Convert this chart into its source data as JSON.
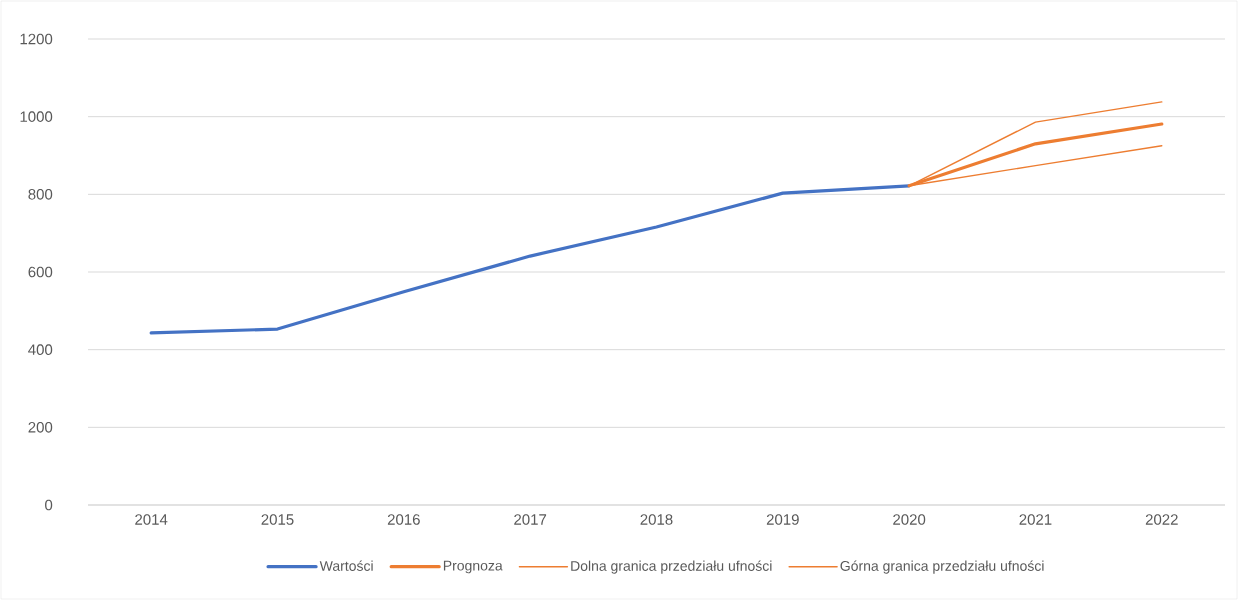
{
  "chart_data": {
    "type": "line",
    "categories": [
      "2014",
      "2015",
      "2016",
      "2017",
      "2018",
      "2019",
      "2020",
      "2021",
      "2022"
    ],
    "series": [
      {
        "name": "Wartości",
        "color": "#4472c4",
        "values": [
          443,
          453,
          549,
          641,
          716,
          803,
          822,
          null,
          null
        ]
      },
      {
        "name": "Prognoza",
        "color": "#ed7d31",
        "values": [
          null,
          null,
          null,
          null,
          null,
          null,
          822,
          930,
          981
        ]
      },
      {
        "name": "Dolna granica przedziału ufności",
        "color": "#ed7d31",
        "values": [
          null,
          null,
          null,
          null,
          null,
          null,
          822,
          874,
          925
        ]
      },
      {
        "name": "Górna granica przedziału ufności",
        "color": "#ed7d31",
        "values": [
          null,
          null,
          null,
          null,
          null,
          null,
          822,
          986,
          1038
        ]
      }
    ],
    "ylim": [
      0,
      1200
    ],
    "yticks": [
      0,
      200,
      400,
      600,
      800,
      1000,
      1200
    ],
    "grid": "y",
    "legend": "bottom",
    "marker": "none",
    "line_style": "solid"
  }
}
